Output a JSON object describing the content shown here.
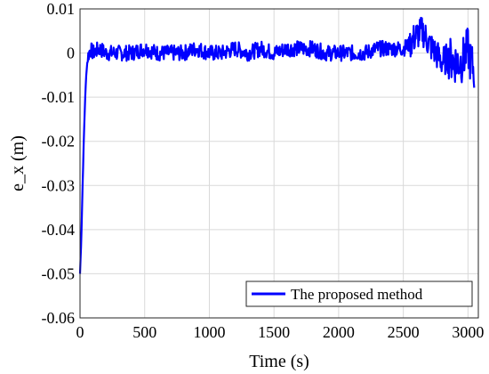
{
  "chart_data": {
    "type": "line",
    "xlabel": "Time (s)",
    "ylabel": "e_x (m)",
    "xlim": [
      0,
      3080
    ],
    "ylim": [
      -0.06,
      0.01
    ],
    "xticks": [
      0,
      500,
      1000,
      1500,
      2000,
      2500,
      3000
    ],
    "yticks": [
      0.01,
      0,
      -0.01,
      -0.02,
      -0.03,
      -0.04,
      -0.05,
      -0.06
    ],
    "xtick_labels": [
      "0",
      "500",
      "1000",
      "1500",
      "2000",
      "2500",
      "3000"
    ],
    "ytick_labels": [
      "0.01",
      "0",
      "-0.01",
      "-0.02",
      "-0.03",
      "-0.04",
      "-0.05",
      "-0.06"
    ],
    "grid": true,
    "legend_position": "bottom-right",
    "series": [
      {
        "name": "The proposed method",
        "color": "#0000ff",
        "x": [
          0,
          10,
          20,
          30,
          40,
          50,
          60,
          80,
          100,
          150,
          200,
          300,
          400,
          500,
          600,
          700,
          800,
          900,
          1000,
          1100,
          1200,
          1300,
          1400,
          1500,
          1600,
          1700,
          1800,
          1900,
          2000,
          2100,
          2200,
          2300,
          2400,
          2500,
          2550,
          2600,
          2650,
          2700,
          2750,
          2800,
          2850,
          2900,
          2950,
          3000,
          3020,
          3050
        ],
        "y": [
          -0.05,
          -0.042,
          -0.03,
          -0.019,
          -0.01,
          -0.004,
          -0.001,
          0.001,
          0.0,
          0.001,
          0.0,
          0.0,
          0.0,
          0.001,
          0.0,
          0.0,
          0.0,
          0.001,
          0.0,
          0.0,
          0.001,
          0.0,
          0.001,
          0.0,
          0.001,
          0.001,
          0.001,
          0.0,
          0.0,
          0.0,
          0.0,
          0.001,
          0.001,
          0.001,
          0.002,
          0.004,
          0.005,
          0.002,
          0.0,
          -0.002,
          -0.001,
          -0.002,
          -0.002,
          0.001,
          -0.002,
          -0.004
        ]
      }
    ]
  }
}
